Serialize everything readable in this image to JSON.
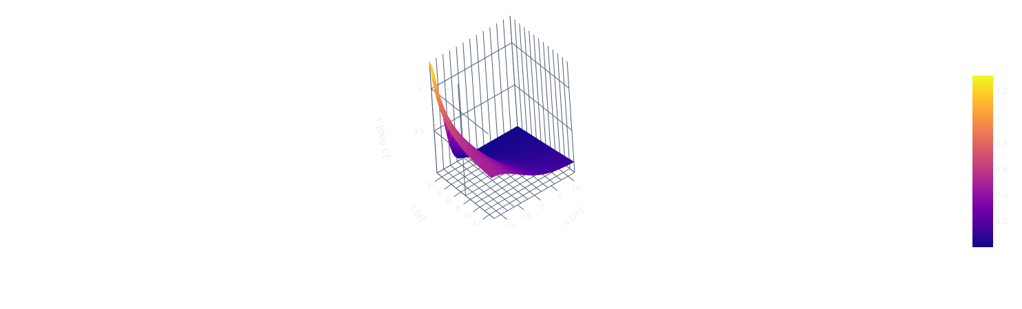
{
  "chart_data": {
    "type": "surface3d",
    "title": "",
    "axes": {
      "x": {
        "label": "x [m]",
        "ticks": [
          -10,
          -5,
          0,
          5,
          10
        ],
        "range": [
          -12,
          12
        ]
      },
      "y": {
        "label": "t [s]",
        "ticks": [
          2,
          4,
          6,
          8,
          10,
          12
        ],
        "range": [
          1,
          13
        ]
      },
      "z": {
        "label": "T [deg C]",
        "ticks": [
          0.5,
          1
        ],
        "range": [
          0,
          1.32
        ]
      }
    },
    "colorbar": {
      "colorscale": "plasma",
      "min": 0,
      "max": 1.32,
      "ticks": [
        0.2,
        0.4,
        0.6,
        0.8,
        1,
        1.2
      ]
    },
    "colors": {
      "axis_text": "#ececf1",
      "grid": "#4e5d75",
      "colorscale_stops": [
        "#0d0887",
        "#46039f",
        "#7201a8",
        "#9c179e",
        "#bd3786",
        "#d8576b",
        "#ed7953",
        "#fb9f3a",
        "#fdca26",
        "#f0f921"
      ]
    }
  }
}
